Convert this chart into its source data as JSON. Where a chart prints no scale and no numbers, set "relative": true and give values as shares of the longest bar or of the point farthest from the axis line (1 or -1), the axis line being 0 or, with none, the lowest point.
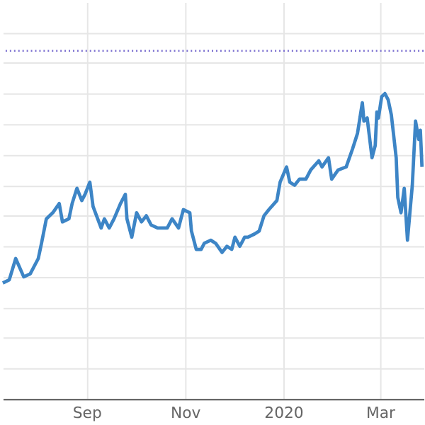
{
  "chart_data": {
    "type": "line",
    "relative": true,
    "grid": true,
    "line_style": "solid",
    "xlim": [
      "2019-07-11",
      "2020-03-28"
    ],
    "xticks": [
      {
        "value": "2019-09-01",
        "label": "Sep"
      },
      {
        "value": "2019-11-01",
        "label": "Nov"
      },
      {
        "value": "2020-01-01",
        "label": "2020"
      },
      {
        "value": "2020-03-01",
        "label": "Mar"
      }
    ],
    "ref_lines": [
      {
        "axis": "y",
        "value": 1.14,
        "color": "#7b6fd0",
        "line_style": "dotted"
      }
    ],
    "series": [
      {
        "color": "#3d85c6",
        "x": [
          "2019-07-11",
          "2019-07-15",
          "2019-07-19",
          "2019-07-24",
          "2019-07-28",
          "2019-08-02",
          "2019-08-04",
          "2019-08-07",
          "2019-08-11",
          "2019-08-15",
          "2019-08-17",
          "2019-08-21",
          "2019-08-23",
          "2019-08-26",
          "2019-08-29",
          "2019-08-31",
          "2019-09-03",
          "2019-09-05",
          "2019-09-10",
          "2019-09-12",
          "2019-09-15",
          "2019-09-18",
          "2019-09-22",
          "2019-09-25",
          "2019-09-26",
          "2019-09-29",
          "2019-10-02",
          "2019-10-05",
          "2019-10-08",
          "2019-10-11",
          "2019-10-15",
          "2019-10-17",
          "2019-10-21",
          "2019-10-24",
          "2019-10-28",
          "2019-10-31",
          "2019-11-04",
          "2019-11-05",
          "2019-11-08",
          "2019-11-11",
          "2019-11-13",
          "2019-11-17",
          "2019-11-20",
          "2019-11-24",
          "2019-11-27",
          "2019-11-30",
          "2019-12-02",
          "2019-12-05",
          "2019-12-08",
          "2019-12-10",
          "2019-12-14",
          "2019-12-17",
          "2019-12-20",
          "2019-12-23",
          "2019-12-28",
          "2019-12-30",
          "2020-01-03",
          "2020-01-05",
          "2020-01-08",
          "2020-01-11",
          "2020-01-15",
          "2020-01-18",
          "2020-01-23",
          "2020-01-25",
          "2020-01-29",
          "2020-01-31",
          "2020-02-04",
          "2020-02-09",
          "2020-02-13",
          "2020-02-16",
          "2020-02-19",
          "2020-02-20",
          "2020-02-22",
          "2020-02-25",
          "2020-02-27",
          "2020-02-28",
          "2020-02-29",
          "2020-03-02",
          "2020-03-04",
          "2020-03-06",
          "2020-03-08",
          "2020-03-11",
          "2020-03-12",
          "2020-03-14",
          "2020-03-16",
          "2020-03-18",
          "2020-03-21",
          "2020-03-23",
          "2020-03-25",
          "2020-03-26",
          "2020-03-27"
        ],
        "values": [
          0.38,
          0.39,
          0.46,
          0.4,
          0.41,
          0.46,
          0.51,
          0.59,
          0.61,
          0.64,
          0.58,
          0.59,
          0.64,
          0.69,
          0.65,
          0.67,
          0.71,
          0.63,
          0.56,
          0.59,
          0.56,
          0.59,
          0.64,
          0.67,
          0.59,
          0.53,
          0.61,
          0.58,
          0.6,
          0.57,
          0.56,
          0.56,
          0.56,
          0.59,
          0.56,
          0.62,
          0.61,
          0.55,
          0.49,
          0.49,
          0.51,
          0.52,
          0.51,
          0.48,
          0.5,
          0.49,
          0.53,
          0.5,
          0.53,
          0.53,
          0.54,
          0.55,
          0.6,
          0.62,
          0.65,
          0.71,
          0.76,
          0.71,
          0.7,
          0.72,
          0.72,
          0.75,
          0.78,
          0.76,
          0.79,
          0.72,
          0.75,
          0.76,
          0.82,
          0.87,
          0.97,
          0.91,
          0.92,
          0.79,
          0.83,
          0.94,
          0.92,
          0.99,
          1,
          0.98,
          0.93,
          0.79,
          0.66,
          0.61,
          0.69,
          0.52,
          0.7,
          0.91,
          0.85,
          0.88,
          0.76
        ]
      }
    ]
  }
}
